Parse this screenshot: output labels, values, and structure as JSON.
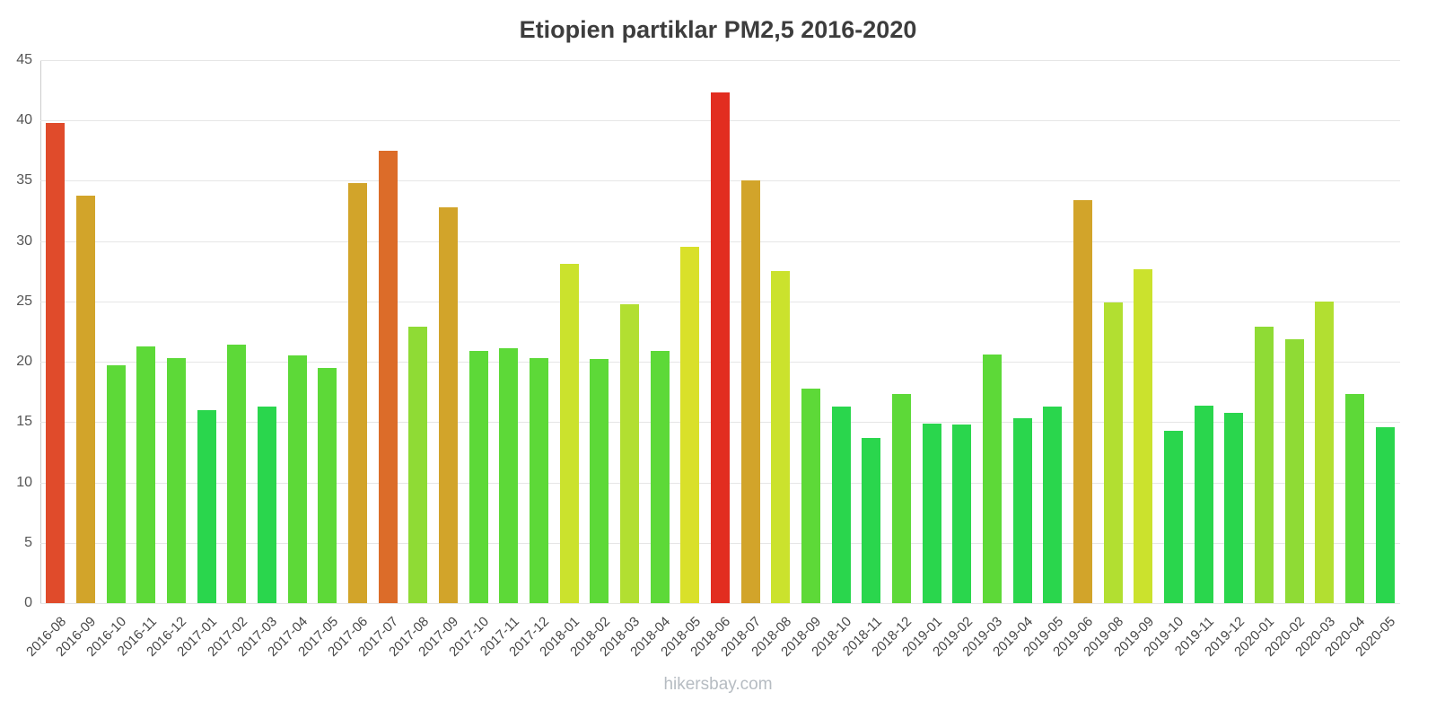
{
  "page": {
    "title": "Etiopien partiklar PM2,5 2016-2020",
    "watermark": "hikersbay.com"
  },
  "chart_data": {
    "type": "bar",
    "title": "Etiopien partiklar PM2,5 2016-2020",
    "xlabel": "",
    "ylabel": "",
    "ylim": [
      0,
      45
    ],
    "yticks": [
      0,
      5,
      10,
      15,
      20,
      25,
      30,
      35,
      40,
      45
    ],
    "grid": true,
    "legend": "none",
    "x_tick_rotation": -45,
    "categories": [
      "2016-08",
      "2016-09",
      "2016-10",
      "2016-11",
      "2016-12",
      "2017-01",
      "2017-02",
      "2017-03",
      "2017-04",
      "2017-05",
      "2017-06",
      "2017-07",
      "2017-08",
      "2017-09",
      "2017-10",
      "2017-11",
      "2017-12",
      "2018-01",
      "2018-02",
      "2018-03",
      "2018-04",
      "2018-05",
      "2018-06",
      "2018-07",
      "2018-08",
      "2018-09",
      "2018-10",
      "2018-11",
      "2018-12",
      "2019-01",
      "2019-02",
      "2019-03",
      "2019-04",
      "2019-05",
      "2019-06",
      "2019-08",
      "2019-09",
      "2019-10",
      "2019-11",
      "2019-12",
      "2020-01",
      "2020-02",
      "2020-03",
      "2020-04",
      "2020-05"
    ],
    "values": [
      39.8,
      33.8,
      19.7,
      21.3,
      20.3,
      16.0,
      21.4,
      16.3,
      20.5,
      19.5,
      34.8,
      37.5,
      22.9,
      32.8,
      20.9,
      21.1,
      20.3,
      28.1,
      20.2,
      24.8,
      20.9,
      29.5,
      42.3,
      35.0,
      27.5,
      17.8,
      16.3,
      13.7,
      17.3,
      14.9,
      14.8,
      20.6,
      15.3,
      16.3,
      33.4,
      24.9,
      27.7,
      14.3,
      16.4,
      15.8,
      22.9,
      21.9,
      25.0,
      17.3,
      14.6
    ],
    "color_scale": [
      {
        "max": 17,
        "color": "#2ad64d"
      },
      {
        "max": 21.5,
        "color": "#5dd938"
      },
      {
        "max": 24,
        "color": "#8fdb35"
      },
      {
        "max": 26.5,
        "color": "#b2df31"
      },
      {
        "max": 28.5,
        "color": "#cbe22d"
      },
      {
        "max": 31,
        "color": "#d9e02a"
      },
      {
        "max": 36,
        "color": "#d2a42a"
      },
      {
        "max": 38.5,
        "color": "#dc6c29"
      },
      {
        "max": 41,
        "color": "#e04b2b"
      },
      {
        "max": 999,
        "color": "#e22d20"
      }
    ],
    "axis_colors": {
      "grid": "#e6e6e6",
      "axis_line": "#cccccc",
      "tick_text": "#555555",
      "title_text": "#3d3d3d",
      "watermark_text": "#b6bcc2"
    }
  }
}
